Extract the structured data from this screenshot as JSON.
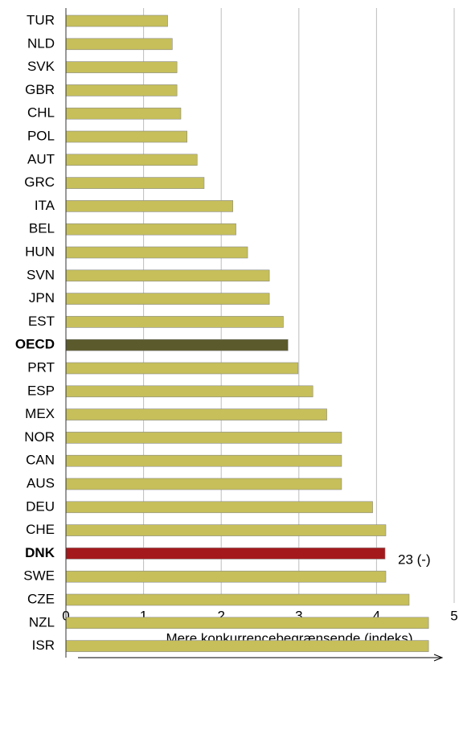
{
  "chart_data": {
    "type": "barh",
    "categories": [
      "TUR",
      "NLD",
      "SVK",
      "GBR",
      "CHL",
      "POL",
      "AUT",
      "GRC",
      "ITA",
      "BEL",
      "HUN",
      "SVN",
      "JPN",
      "EST",
      "OECD",
      "PRT",
      "ESP",
      "MEX",
      "NOR",
      "CAN",
      "AUS",
      "DEU",
      "CHE",
      "DNK",
      "SWE",
      "CZE",
      "NZL",
      "ISR"
    ],
    "values": [
      1.31,
      1.37,
      1.43,
      1.43,
      1.48,
      1.56,
      1.69,
      1.78,
      2.15,
      2.19,
      2.34,
      2.62,
      2.62,
      2.8,
      2.86,
      2.99,
      3.18,
      3.36,
      3.55,
      3.55,
      3.55,
      3.95,
      4.12,
      4.11,
      4.12,
      4.42,
      4.67,
      4.67
    ],
    "color": "#c6bf5a",
    "colors": [
      "#c6bf5a",
      "#c6bf5a",
      "#c6bf5a",
      "#c6bf5a",
      "#c6bf5a",
      "#c6bf5a",
      "#c6bf5a",
      "#c6bf5a",
      "#c6bf5a",
      "#c6bf5a",
      "#c6bf5a",
      "#c6bf5a",
      "#c6bf5a",
      "#c6bf5a",
      "#5b5a2c",
      "#c6bf5a",
      "#c6bf5a",
      "#c6bf5a",
      "#c6bf5a",
      "#c6bf5a",
      "#c6bf5a",
      "#c6bf5a",
      "#c6bf5a",
      "#a3191c",
      "#c6bf5a",
      "#c6bf5a",
      "#c6bf5a",
      "#c6bf5a"
    ],
    "xlim": [
      0,
      5
    ],
    "xticks": [
      0,
      1,
      2,
      3,
      4,
      5
    ],
    "grid": true,
    "xlabel": "Mere konkurrencebegrænsende (indeks)",
    "annotation": "23 (-)"
  }
}
